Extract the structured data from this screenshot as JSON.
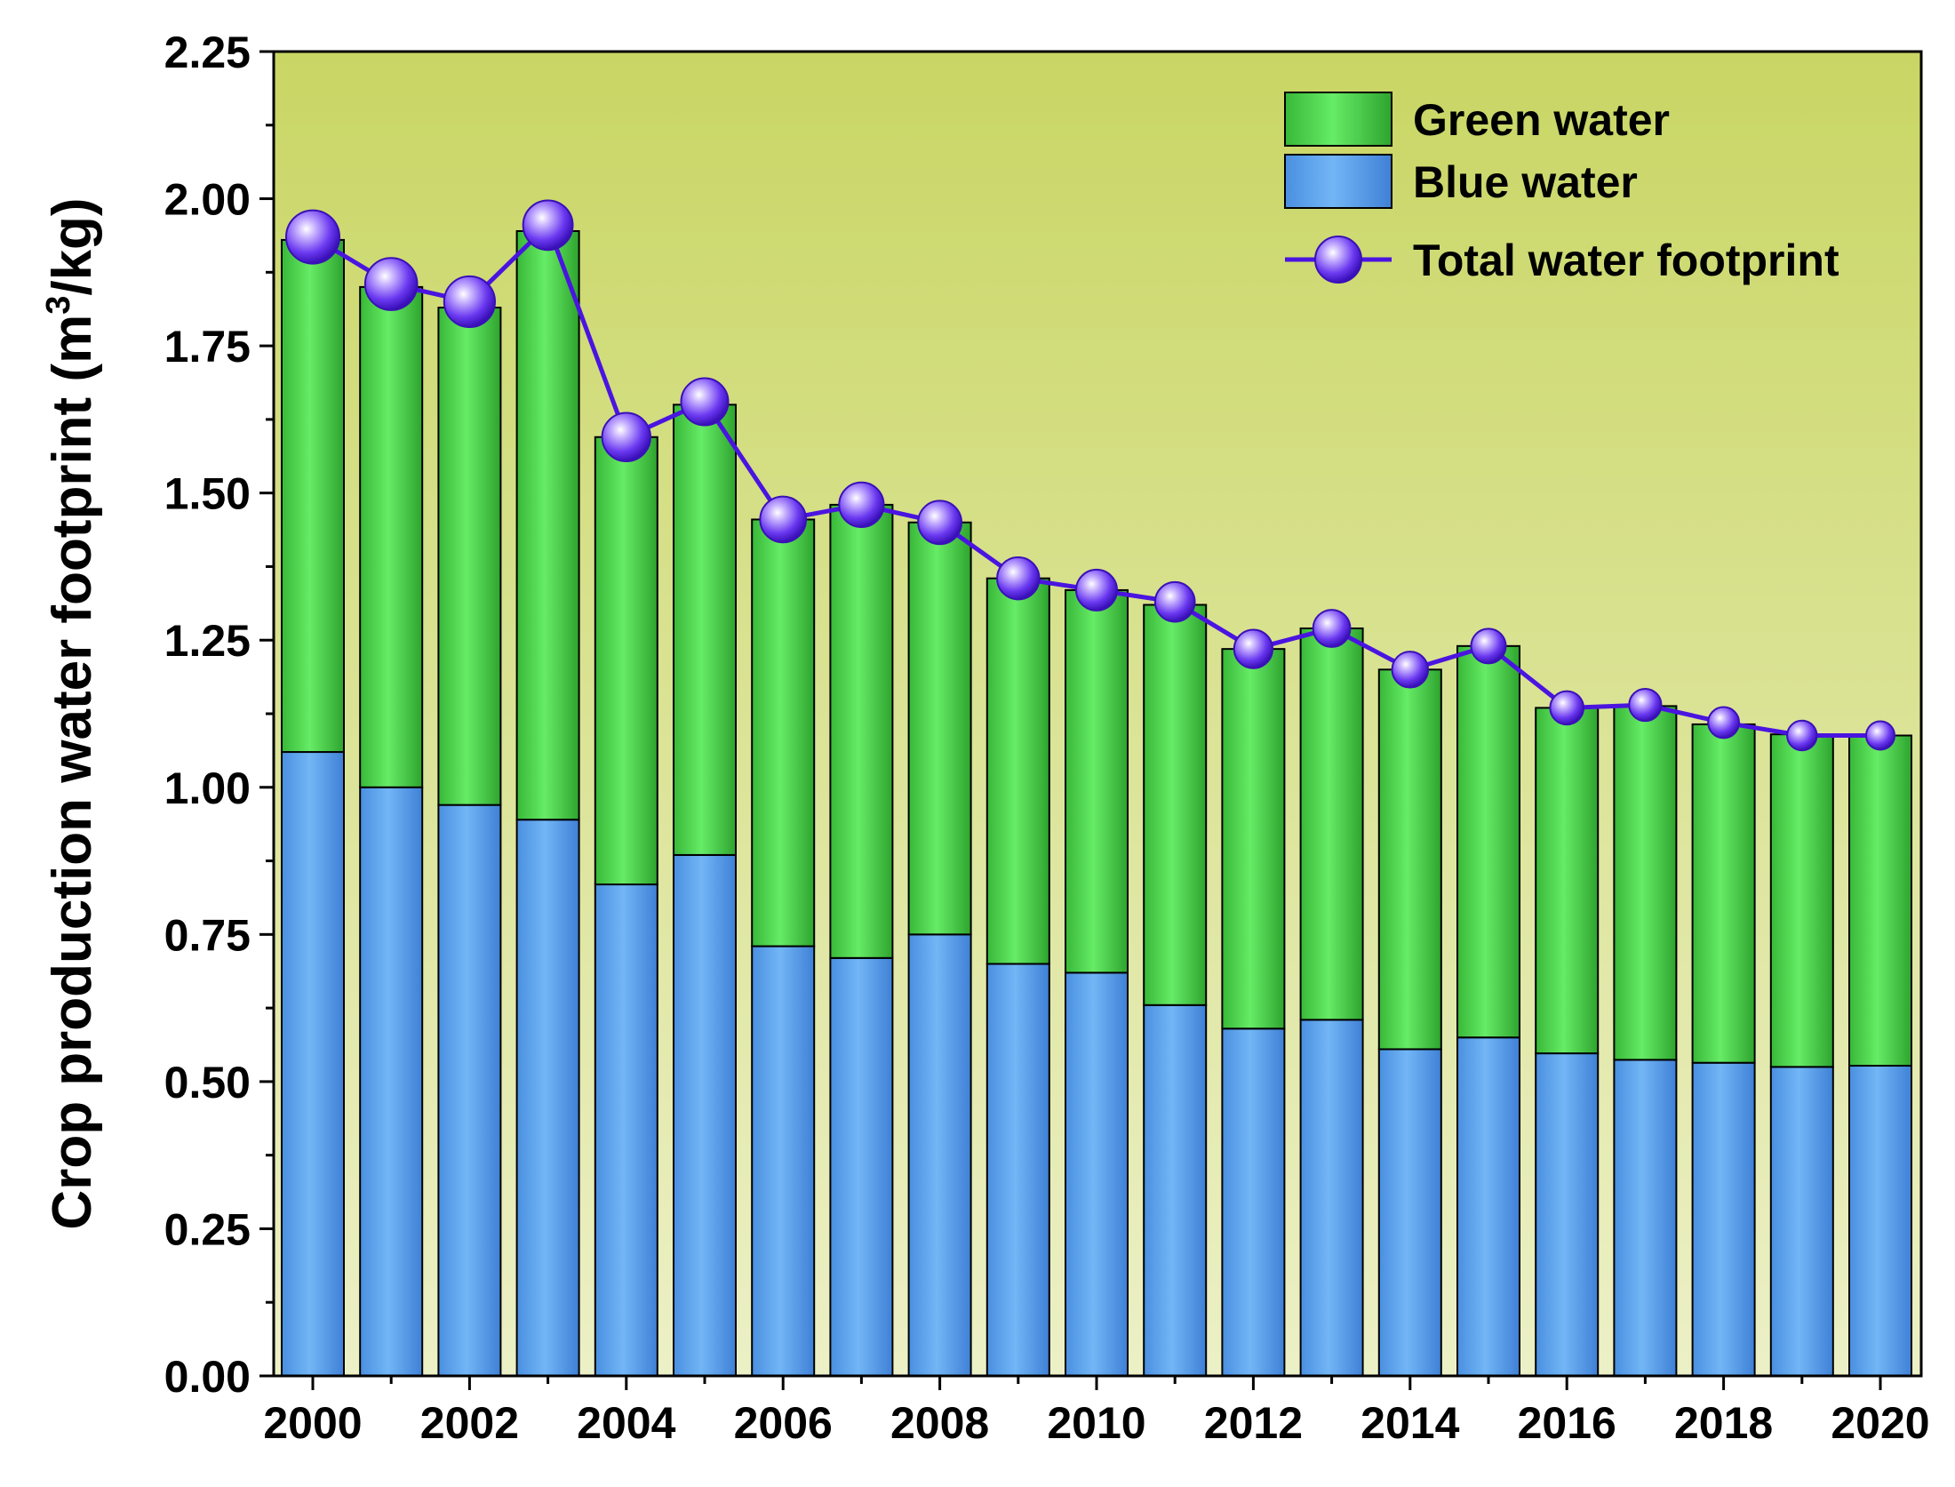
{
  "chart_data": {
    "type": "bar",
    "stacked": true,
    "title": "",
    "xlabel": "",
    "ylabel": "Crop production water footprint (m³/kg)",
    "ylabel_parts": {
      "before": "Crop production water footprint (m",
      "sup": "3",
      "after": "/kg)"
    },
    "ylim": [
      0,
      2.25
    ],
    "yticks": [
      "0.00",
      "0.25",
      "0.50",
      "0.75",
      "1.00",
      "1.25",
      "1.50",
      "1.75",
      "2.00",
      "2.25"
    ],
    "ytick_values": [
      0,
      0.25,
      0.5,
      0.75,
      1.0,
      1.25,
      1.5,
      1.75,
      2.0,
      2.25
    ],
    "categories": [
      "2000",
      "2001",
      "2002",
      "2003",
      "2004",
      "2005",
      "2006",
      "2007",
      "2008",
      "2009",
      "2010",
      "2011",
      "2012",
      "2013",
      "2014",
      "2015",
      "2016",
      "2017",
      "2018",
      "2019",
      "2020"
    ],
    "xtick_labels": [
      "2000",
      "2002",
      "2004",
      "2006",
      "2008",
      "2010",
      "2012",
      "2014",
      "2016",
      "2018",
      "2020"
    ],
    "series": [
      {
        "name": "Blue water",
        "kind": "bar",
        "values": [
          1.06,
          1.0,
          0.97,
          0.945,
          0.835,
          0.885,
          0.73,
          0.71,
          0.75,
          0.7,
          0.685,
          0.63,
          0.59,
          0.605,
          0.555,
          0.575,
          0.548,
          0.537,
          0.532,
          0.525,
          0.527
        ]
      },
      {
        "name": "Green water",
        "kind": "bar",
        "values": [
          0.87,
          0.85,
          0.845,
          1.0,
          0.76,
          0.765,
          0.725,
          0.77,
          0.7,
          0.655,
          0.65,
          0.68,
          0.645,
          0.665,
          0.645,
          0.665,
          0.587,
          0.601,
          0.575,
          0.565,
          0.561
        ]
      },
      {
        "name": "Total water footprint",
        "kind": "line",
        "values": [
          1.935,
          1.855,
          1.825,
          1.955,
          1.595,
          1.655,
          1.455,
          1.48,
          1.45,
          1.355,
          1.335,
          1.315,
          1.235,
          1.27,
          1.2,
          1.24,
          1.135,
          1.14,
          1.11,
          1.088,
          1.088
        ]
      }
    ],
    "legend": {
      "position": "top-right",
      "entries": [
        "Green water",
        "Blue water",
        "Total water footprint"
      ]
    },
    "colors": {
      "blue": "#6aaef0",
      "green": "#5ee05e",
      "line": "#4a14e0",
      "marker": "#8a5cf0",
      "bg_top": "#c9d664",
      "bg_bottom": "#ecf0c6"
    }
  }
}
